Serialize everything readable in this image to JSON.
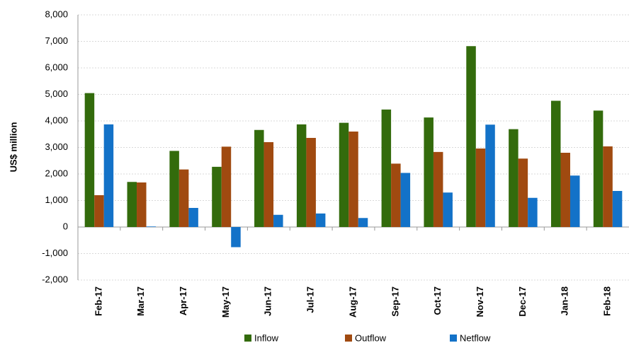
{
  "chart_data": {
    "type": "bar",
    "y_label": "US$ million",
    "categories": [
      "Feb-17",
      "Mar-17",
      "Apr-17",
      "May-17",
      "Jun-17",
      "Jul-17",
      "Aug-17",
      "Sep-17",
      "Oct-17",
      "Nov-17",
      "Dec-17",
      "Jan-18",
      "Feb-18"
    ],
    "series": [
      {
        "name": "Inflow",
        "color": "#336b0c",
        "values": [
          5050,
          1700,
          2870,
          2270,
          3660,
          3870,
          3930,
          4430,
          4130,
          6820,
          3690,
          4760,
          4390
        ]
      },
      {
        "name": "Outflow",
        "color": "#a04a10",
        "values": [
          1200,
          1680,
          2170,
          3030,
          3200,
          3360,
          3600,
          2390,
          2830,
          2960,
          2580,
          2800,
          3040
        ]
      },
      {
        "name": "Netflow",
        "color": "#1372c8",
        "values": [
          3870,
          20,
          720,
          -760,
          460,
          510,
          340,
          2040,
          1300,
          3860,
          1100,
          1940,
          1360
        ]
      }
    ],
    "ylim": [
      -2000,
      8000
    ],
    "yticks": [
      {
        "value": -2000,
        "label": "-2,000"
      },
      {
        "value": -1000,
        "label": "-1,000"
      },
      0,
      {
        "value": 1000,
        "label": "1,000"
      },
      {
        "value": 2000,
        "label": "2,000"
      },
      {
        "value": 3000,
        "label": "3,000"
      },
      {
        "value": 4000,
        "label": "4,000"
      },
      {
        "value": 5000,
        "label": "5,000"
      },
      {
        "value": 6000,
        "label": "6,000"
      },
      {
        "value": 7000,
        "label": "7,000"
      },
      {
        "value": 8000,
        "label": "8,000"
      }
    ],
    "grid": true
  }
}
